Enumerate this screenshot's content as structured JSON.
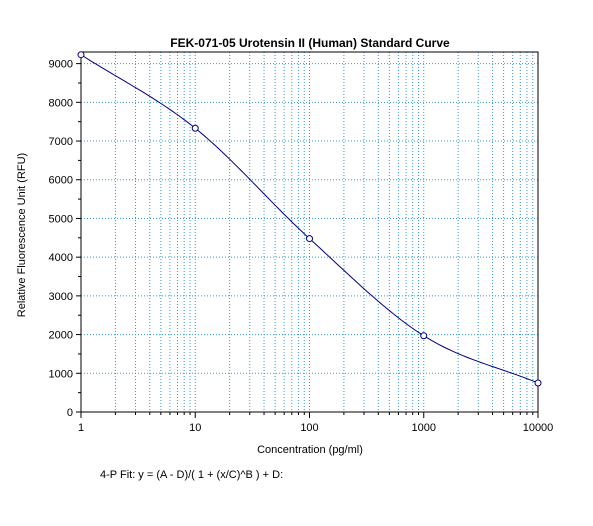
{
  "chart_data": {
    "type": "scatter",
    "title": "FEK-071-05 Urotensin II (Human) Standard Curve",
    "xlabel": "Concentration (pg/ml)",
    "ylabel": "Relative Fluorescence Unit (RFU)",
    "x_scale": "log",
    "xlim": [
      1,
      10000
    ],
    "ylim": [
      0,
      9300
    ],
    "x_ticks": [
      1,
      10,
      100,
      1000,
      10000
    ],
    "x_tick_labels": [
      "1",
      "10",
      "100",
      "1000",
      "10000"
    ],
    "y_ticks": [
      0,
      1000,
      2000,
      3000,
      4000,
      5000,
      6000,
      7000,
      8000,
      9000
    ],
    "y_tick_labels": [
      "0",
      "1000",
      "2000",
      "3000",
      "4000",
      "5000",
      "6000",
      "7000",
      "8000",
      "9000"
    ],
    "grid": true,
    "series": [
      {
        "points": {
          "x": [
            1,
            10,
            100,
            1000,
            10000
          ],
          "y": [
            9230,
            7330,
            4480,
            1970,
            750
          ]
        },
        "fit_curve": true
      }
    ],
    "annotation": "4-P Fit: y = (A - D)/( 1 + (x/C)^B ) + D:",
    "colors": {
      "grid": "#3399cc",
      "curve": "#000080",
      "marker": "#000080",
      "axis": "#000000"
    }
  }
}
